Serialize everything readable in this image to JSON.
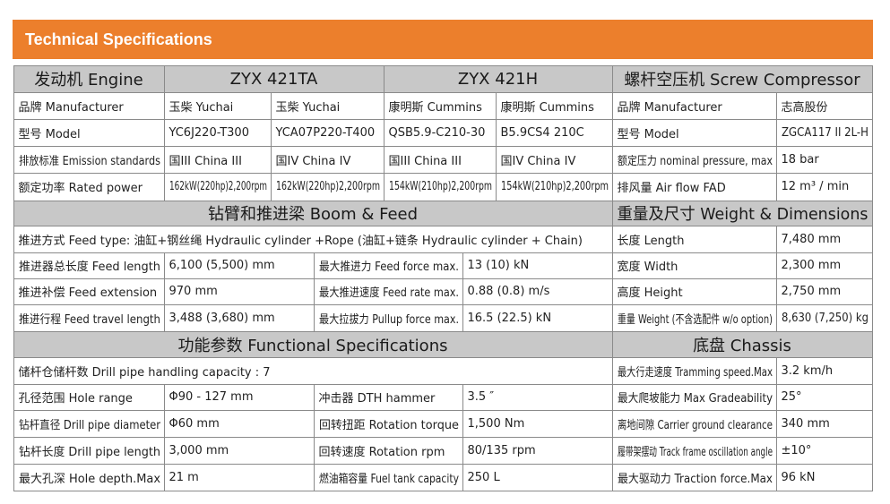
{
  "header": {
    "title": "Technical Specifications"
  },
  "engine": {
    "heading": "发动机 Engine",
    "models": [
      "ZYX 421TA",
      "ZYX 421H"
    ],
    "rows": [
      {
        "label": "品牌 Manufacturer",
        "values": [
          "玉柴 Yuchai",
          "玉柴 Yuchai",
          "康明斯 Cummins",
          "康明斯 Cummins"
        ]
      },
      {
        "label": "型号 Model",
        "values": [
          "YC6J220-T300",
          "YCA07P220-T400",
          "QSB5.9-C210-30",
          "B5.9CS4 210C"
        ]
      },
      {
        "label": "排放标准 Emission standards",
        "values": [
          "国III China III",
          "国IV China IV",
          "国III China III",
          "国IV China IV"
        ]
      },
      {
        "label": "额定功率 Rated power",
        "values": [
          "162kW(220hp)2,200rpm",
          "162kW(220hp)2,200rpm",
          "154kW(210hp)2,200rpm",
          "154kW(210hp)2,200rpm"
        ]
      }
    ]
  },
  "compressor": {
    "heading": "螺杆空压机 Screw Compressor",
    "rows": [
      {
        "label": "品牌 Manufacturer",
        "value": "志高股份"
      },
      {
        "label": "型号 Model",
        "value": "ZGCA117 II 2L-H"
      },
      {
        "label": "额定压力 nominal pressure, max",
        "value": "18 bar"
      },
      {
        "label": "排风量 Air flow FAD",
        "value": "12 m³ / min"
      }
    ]
  },
  "boom_feed": {
    "heading": "钻臂和推进梁 Boom & Feed",
    "feed_type": "推进方式 Feed type: 油缸+钢丝绳 Hydraulic cylinder +Rope (油缸+链条 Hydraulic cylinder + Chain)",
    "rows": [
      {
        "label": "推进器总长度 Feed length",
        "value": "6,100 (5,500) mm",
        "label2": "最大推进力 Feed force max.",
        "value2": "13 (10) kN"
      },
      {
        "label": "推进补偿 Feed extension",
        "value": "970 mm",
        "label2": "最大推进速度 Feed rate max.",
        "value2": "0.88 (0.8)  m/s"
      },
      {
        "label": "推进行程 Feed travel length",
        "value": "3,488 (3,680) mm",
        "label2": "最大拉拔力 Pullup force max.",
        "value2": "16.5 (22.5) kN"
      }
    ]
  },
  "weight": {
    "heading": "重量及尺寸 Weight & Dimensions",
    "rows": [
      {
        "label": "长度 Length",
        "value": "7,480 mm"
      },
      {
        "label": "宽度 Width",
        "value": "2,300 mm"
      },
      {
        "label": "高度 Height",
        "value": "2,750 mm"
      },
      {
        "label": "重量 Weight (不含选配件 w/o option)",
        "value": "8,630 (7,250) kg"
      }
    ]
  },
  "functional": {
    "heading": "功能参数 Functional Specifications",
    "capacity": "储杆仓储杆数 Drill pipe handling capacity : 7",
    "rows": [
      {
        "label": "孔径范围 Hole range",
        "value": "Φ90 - 127 mm",
        "label2": "冲击器 DTH hammer",
        "value2": "3.5 ″"
      },
      {
        "label": "钻杆直径 Drill pipe diameter",
        "value": "Φ60 mm",
        "label2": "回转扭距 Rotation torque",
        "value2": "1,500 Nm"
      },
      {
        "label": "钻杆长度 Drill pipe length",
        "value": "3,000 mm",
        "label2": "回转速度 Rotation rpm",
        "value2": "80/135 rpm"
      },
      {
        "label": "最大孔深 Hole depth.Max",
        "value": "21 m",
        "label2": "燃油箱容量 Fuel tank capacity",
        "value2": "250 L"
      }
    ]
  },
  "chassis": {
    "heading": "底盘 Chassis",
    "rows": [
      {
        "label": "最大行走速度 Tramming speed.Max",
        "value": "3.2 km/h"
      },
      {
        "label": "最大爬坡能力 Max Gradeability",
        "value": "25°"
      },
      {
        "label": "离地间隙 Carrier ground clearance",
        "value": "340 mm"
      },
      {
        "label": "履带架摆动 Track frame oscillation angle",
        "value": "±10°"
      },
      {
        "label": "最大驱动力 Traction force.Max",
        "value": "96 kN"
      }
    ]
  }
}
